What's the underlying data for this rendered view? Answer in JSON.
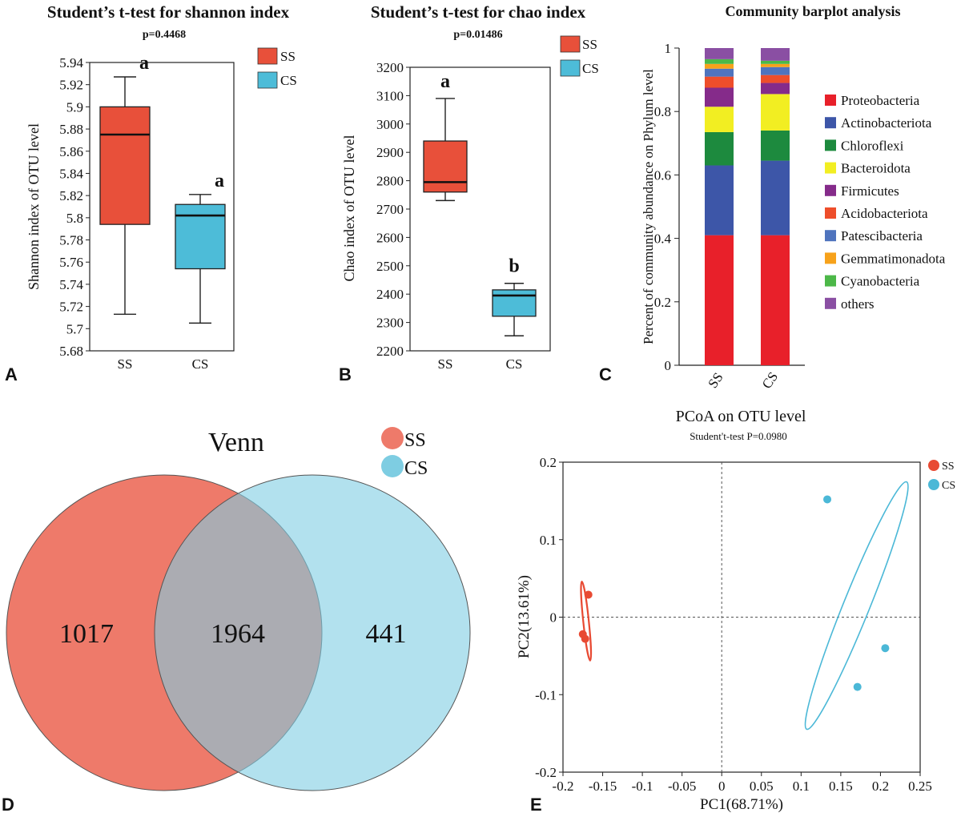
{
  "panel_letters": [
    "A",
    "B",
    "C",
    "D",
    "E"
  ],
  "chart_data": [
    {
      "type": "box",
      "panel": "A",
      "title": "Student’s t-test for shannon index",
      "subtitle": "p=0.4468",
      "xlabel": "",
      "ylabel": "Shannon index of OTU level",
      "ylim": [
        5.68,
        5.94
      ],
      "yticks": [
        "5.68",
        "5.7",
        "5.72",
        "5.74",
        "5.76",
        "5.78",
        "5.8",
        "5.82",
        "5.84",
        "5.86",
        "5.88",
        "5.9",
        "5.92",
        "5.94"
      ],
      "categories": [
        "SS",
        "CS"
      ],
      "legend": [
        "SS",
        "CS"
      ],
      "colors": [
        "#e8503a",
        "#4dbcd8"
      ],
      "boxes": [
        {
          "name": "SS",
          "min": 5.713,
          "q1": 5.794,
          "median": 5.875,
          "q3": 5.9,
          "max": 5.927,
          "label": "a"
        },
        {
          "name": "CS",
          "min": 5.705,
          "q1": 5.754,
          "median": 5.802,
          "q3": 5.812,
          "max": 5.821,
          "label": "a"
        }
      ]
    },
    {
      "type": "box",
      "panel": "B",
      "title": "Student’s t-test for chao index",
      "subtitle": "p=0.01486",
      "xlabel": "",
      "ylabel": "Chao index of OTU level",
      "ylim": [
        2200,
        3200
      ],
      "yticks": [
        "2200",
        "2300",
        "2400",
        "2500",
        "2600",
        "2700",
        "2800",
        "2900",
        "3000",
        "3100",
        "3200"
      ],
      "categories": [
        "SS",
        "CS"
      ],
      "legend": [
        "SS",
        "CS"
      ],
      "colors": [
        "#e8503a",
        "#4dbcd8"
      ],
      "boxes": [
        {
          "name": "SS",
          "min": 2730,
          "q1": 2760,
          "median": 2795,
          "q3": 2940,
          "max": 3090,
          "label": "a"
        },
        {
          "name": "CS",
          "min": 2253,
          "q1": 2322,
          "median": 2395,
          "q3": 2415,
          "max": 2438,
          "label": "b"
        }
      ]
    },
    {
      "type": "bar",
      "stacked": true,
      "panel": "C",
      "title": "Community barplot analysis",
      "xlabel": "",
      "ylabel": "Percent of community abundance on Phylum level",
      "ylim": [
        0,
        1
      ],
      "yticks": [
        "0",
        "0.2",
        "0.4",
        "0.6",
        "0.8",
        "1"
      ],
      "categories": [
        "SS",
        "CS"
      ],
      "series": [
        {
          "name": "Proteobacteria",
          "color": "#e8202a",
          "values": [
            0.41,
            0.41
          ]
        },
        {
          "name": "Actinobacteriota",
          "color": "#3d56a8",
          "values": [
            0.22,
            0.235
          ]
        },
        {
          "name": "Chloroflexi",
          "color": "#1d8a3e",
          "values": [
            0.105,
            0.095
          ]
        },
        {
          "name": "Bacteroidota",
          "color": "#f2ee22",
          "values": [
            0.08,
            0.115
          ]
        },
        {
          "name": "Firmicutes",
          "color": "#852b8a",
          "values": [
            0.06,
            0.035
          ]
        },
        {
          "name": "Acidobacteriota",
          "color": "#ee4e2b",
          "values": [
            0.035,
            0.025
          ]
        },
        {
          "name": "Patescibacteria",
          "color": "#4f74be",
          "values": [
            0.025,
            0.025
          ]
        },
        {
          "name": "Gemmatimonadota",
          "color": "#f7a21b",
          "values": [
            0.015,
            0.01
          ]
        },
        {
          "name": "Cyanobacteria",
          "color": "#4cb848",
          "values": [
            0.015,
            0.01
          ]
        },
        {
          "name": "others",
          "color": "#8a4fa3",
          "values": [
            0.035,
            0.04
          ]
        }
      ]
    },
    {
      "type": "venn",
      "panel": "D",
      "title": "Venn",
      "sets": [
        {
          "name": "SS",
          "color": "#ee7a6a",
          "only": "1017"
        },
        {
          "name": "CS",
          "color": "#7ecde2",
          "only": "441"
        }
      ],
      "intersection": "1964"
    },
    {
      "type": "scatter",
      "panel": "E",
      "title": "PCoA on OTU level",
      "subtitle": "Student't-test P=0.0980",
      "xlabel": "PC1(68.71%)",
      "ylabel": "PC2(13.61%)",
      "xlim": [
        -0.2,
        0.25
      ],
      "ylim": [
        -0.2,
        0.2
      ],
      "xticks": [
        "-0.2",
        "-0.15",
        "-0.1",
        "-0.05",
        "0",
        "0.05",
        "0.1",
        "0.15",
        "0.2",
        "0.25"
      ],
      "yticks": [
        "-0.2",
        "-0.1",
        "0",
        "0.1",
        "0.2"
      ],
      "series": [
        {
          "name": "SS",
          "color": "#e84a33",
          "points": [
            [
              -0.168,
              0.029
            ],
            [
              -0.175,
              -0.022
            ],
            [
              -0.172,
              -0.028
            ]
          ],
          "ellipse": {
            "cx": -0.171,
            "cy": -0.005,
            "rx": 0.05,
            "ry": 0.0035,
            "angle_deg": -96
          }
        },
        {
          "name": "CS",
          "color": "#4bb8d7",
          "points": [
            [
              0.133,
              0.152
            ],
            [
              0.206,
              -0.04
            ],
            [
              0.171,
              -0.09
            ]
          ],
          "ellipse": {
            "cx": 0.17,
            "cy": 0.015,
            "rx": 0.168,
            "ry": 0.0165,
            "angle_deg": -68
          }
        }
      ]
    }
  ]
}
